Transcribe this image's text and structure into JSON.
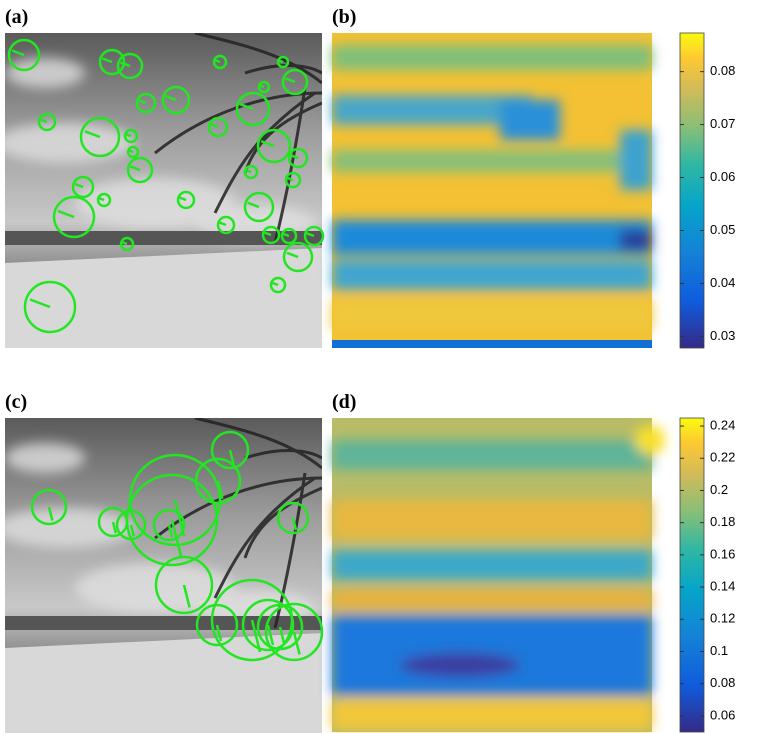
{
  "panels": [
    {
      "label": "(a)"
    },
    {
      "label": "(b)",
      "colorbar": {
        "lim": [
          0.0278,
          0.0873
        ],
        "ticks": [
          0.03,
          0.04,
          0.05,
          0.06,
          0.07,
          0.08
        ]
      }
    },
    {
      "label": "(c)"
    },
    {
      "label": "(d)",
      "colorbar": {
        "lim": [
          0.05,
          0.245
        ],
        "ticks": [
          0.06,
          0.08,
          0.1,
          0.12,
          0.14,
          0.16,
          0.18,
          0.2,
          0.22,
          0.24
        ]
      }
    }
  ]
}
